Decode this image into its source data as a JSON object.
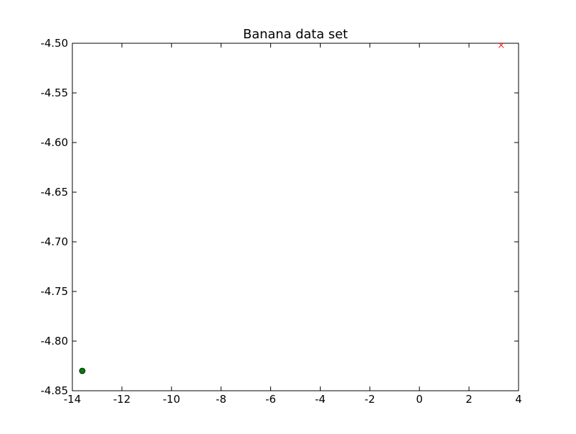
{
  "chart_data": {
    "type": "scatter",
    "title": "Banana data set",
    "xlabel": "",
    "ylabel": "",
    "xlim": [
      -14,
      4
    ],
    "ylim": [
      -4.85,
      -4.5
    ],
    "xticks": [
      "-14",
      "-12",
      "-10",
      "-8",
      "-6",
      "-4",
      "-2",
      "0",
      "2",
      "4"
    ],
    "xtick_values": [
      -14,
      -12,
      -10,
      -8,
      -6,
      -4,
      -2,
      0,
      2,
      4
    ],
    "yticks": [
      "-4.50",
      "-4.55",
      "-4.60",
      "-4.65",
      "-4.70",
      "-4.75",
      "-4.80",
      "-4.85"
    ],
    "ytick_values": [
      -4.5,
      -4.55,
      -4.6,
      -4.65,
      -4.7,
      -4.75,
      -4.8,
      -4.85
    ],
    "grid": false,
    "series": [
      {
        "marker": "circle",
        "color": "#008000",
        "points": [
          {
            "x": -13.6,
            "y": -4.83
          }
        ]
      },
      {
        "marker": "x",
        "color": "#ff0000",
        "points": [
          {
            "x": 3.3,
            "y": -4.502
          }
        ]
      }
    ]
  }
}
